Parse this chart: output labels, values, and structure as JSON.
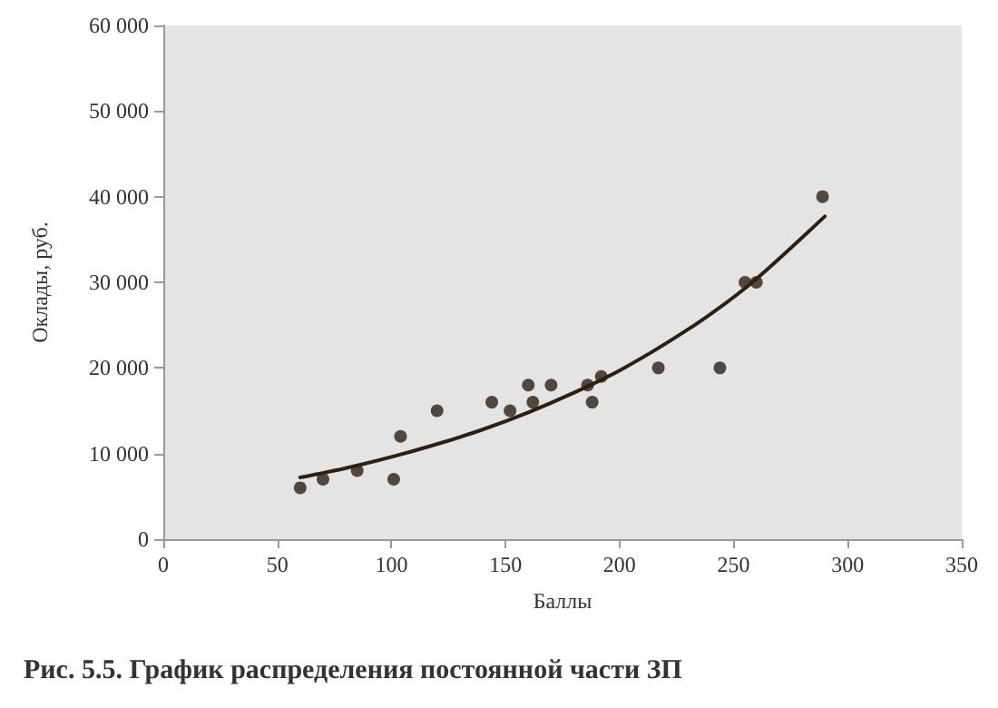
{
  "chart_data": {
    "type": "scatter",
    "title": "Рис. 5.5. График распределения постоянной части ЗП",
    "xlabel": "Баллы",
    "ylabel": "Оклады, руб.",
    "xlim": [
      0,
      350
    ],
    "xticks": [
      0,
      50,
      100,
      150,
      200,
      250,
      300,
      350
    ],
    "ylim": [
      0,
      60000
    ],
    "yticks": [
      0,
      {
        "value": 10000,
        "label": "10 000"
      },
      {
        "value": 20000,
        "label": "20 000"
      },
      {
        "value": 30000,
        "label": "30 000"
      },
      {
        "value": 40000,
        "label": "40 000"
      },
      {
        "value": 50000,
        "label": "50 000"
      },
      {
        "value": 60000,
        "label": "60 000"
      }
    ],
    "grid": false,
    "series": [
      {
        "marker": "circle",
        "color": "#2e1f10",
        "x": [
          60,
          70,
          85,
          101,
          104,
          120,
          144,
          152,
          160,
          162,
          170,
          186,
          188,
          192,
          217,
          244,
          255,
          260,
          289
        ],
        "values": [
          6000,
          7000,
          8000,
          7000,
          12000,
          15000,
          16000,
          15000,
          18000,
          16000,
          18000,
          18000,
          16000,
          19000,
          20000,
          20000,
          30000,
          30000,
          40000
        ]
      },
      {
        "type": "line",
        "color": "#2e1f10",
        "line_style": "solid",
        "x": [
          60,
          80,
          100,
          120,
          140,
          160,
          180,
          200,
          220,
          240,
          260,
          290
        ],
        "values": [
          7200,
          8300,
          9600,
          11100,
          12800,
          14800,
          17100,
          19700,
          22800,
          26300,
          30400,
          37700
        ]
      }
    ]
  }
}
